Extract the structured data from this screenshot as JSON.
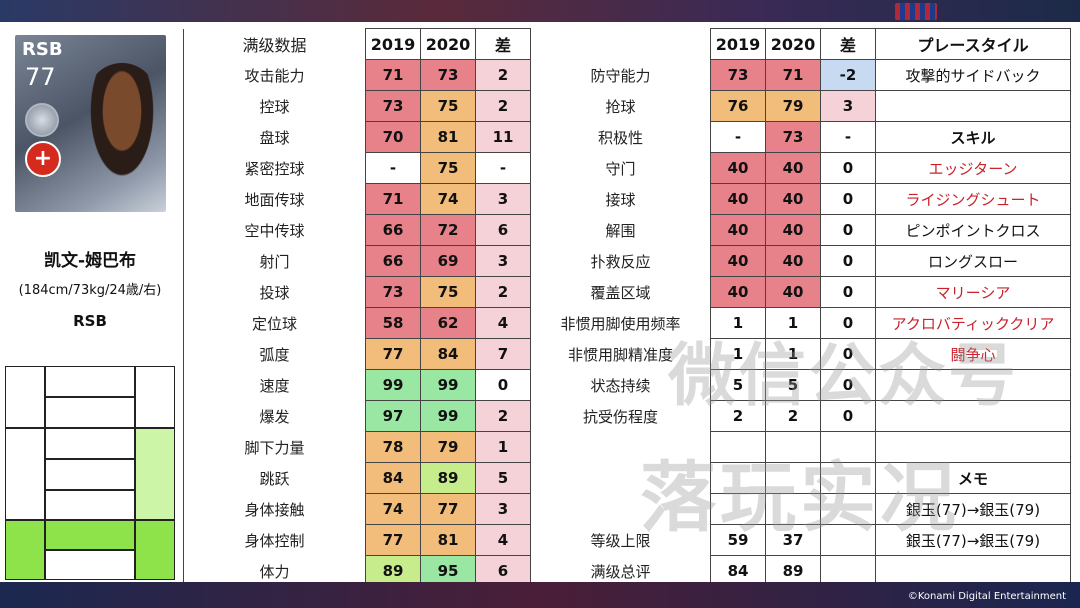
{
  "card": {
    "position": "RSB",
    "rating": "77"
  },
  "player": {
    "name": "凯文-姆巴布",
    "info": "(184cm/73kg/24歳/右)",
    "position": "RSB"
  },
  "headers": {
    "left_title": "满级数据",
    "y1": "2019",
    "y2": "2020",
    "diff": "差",
    "style_title": "プレースタイル"
  },
  "left_rows": [
    {
      "label": "攻击能力",
      "y1": "71",
      "y2": "73",
      "d": "2"
    },
    {
      "label": "控球",
      "y1": "73",
      "y2": "75",
      "d": "2"
    },
    {
      "label": "盘球",
      "y1": "70",
      "y2": "81",
      "d": "11"
    },
    {
      "label": "紧密控球",
      "y1": "-",
      "y2": "75",
      "d": "-"
    },
    {
      "label": "地面传球",
      "y1": "71",
      "y2": "74",
      "d": "3"
    },
    {
      "label": "空中传球",
      "y1": "66",
      "y2": "72",
      "d": "6"
    },
    {
      "label": "射门",
      "y1": "66",
      "y2": "69",
      "d": "3"
    },
    {
      "label": "投球",
      "y1": "73",
      "y2": "75",
      "d": "2"
    },
    {
      "label": "定位球",
      "y1": "58",
      "y2": "62",
      "d": "4"
    },
    {
      "label": "弧度",
      "y1": "77",
      "y2": "84",
      "d": "7"
    },
    {
      "label": "速度",
      "y1": "99",
      "y2": "99",
      "d": "0"
    },
    {
      "label": "爆发",
      "y1": "97",
      "y2": "99",
      "d": "2"
    },
    {
      "label": "脚下力量",
      "y1": "78",
      "y2": "79",
      "d": "1"
    },
    {
      "label": "跳跃",
      "y1": "84",
      "y2": "89",
      "d": "5"
    },
    {
      "label": "身体接触",
      "y1": "74",
      "y2": "77",
      "d": "3"
    },
    {
      "label": "身体控制",
      "y1": "77",
      "y2": "81",
      "d": "4"
    },
    {
      "label": "体力",
      "y1": "89",
      "y2": "95",
      "d": "6"
    }
  ],
  "right_rows": [
    {
      "label": "防守能力",
      "y1": "73",
      "y2": "71",
      "d": "-2"
    },
    {
      "label": "抢球",
      "y1": "76",
      "y2": "79",
      "d": "3"
    },
    {
      "label": "积极性",
      "y1": "-",
      "y2": "73",
      "d": "-"
    },
    {
      "label": "守门",
      "y1": "40",
      "y2": "40",
      "d": "0"
    },
    {
      "label": "接球",
      "y1": "40",
      "y2": "40",
      "d": "0"
    },
    {
      "label": "解围",
      "y1": "40",
      "y2": "40",
      "d": "0"
    },
    {
      "label": "扑救反应",
      "y1": "40",
      "y2": "40",
      "d": "0"
    },
    {
      "label": "覆盖区域",
      "y1": "40",
      "y2": "40",
      "d": "0"
    },
    {
      "label": "非惯用脚使用频率",
      "y1": "1",
      "y2": "1",
      "d": "0"
    },
    {
      "label": "非惯用脚精准度",
      "y1": "1",
      "y2": "1",
      "d": "0"
    },
    {
      "label": "状态持续",
      "y1": "5",
      "y2": "5",
      "d": "0"
    },
    {
      "label": "抗受伤程度",
      "y1": "2",
      "y2": "2",
      "d": "0"
    },
    {
      "label": "",
      "y1": "",
      "y2": "",
      "d": ""
    },
    {
      "label": "",
      "y1": "",
      "y2": "",
      "d": ""
    },
    {
      "label": "",
      "y1": "",
      "y2": "",
      "d": ""
    },
    {
      "label": "等级上限",
      "y1": "59",
      "y2": "37",
      "d": ""
    },
    {
      "label": "满级总评",
      "y1": "84",
      "y2": "89",
      "d": ""
    }
  ],
  "side_col": [
    {
      "text": "攻撃的サイドバック",
      "style": "normal"
    },
    {
      "text": "",
      "style": "normal"
    },
    {
      "text": "スキル",
      "style": "title"
    },
    {
      "text": "エッジターン",
      "style": "red"
    },
    {
      "text": "ライジングシュート",
      "style": "red"
    },
    {
      "text": "ピンポイントクロス",
      "style": "normal"
    },
    {
      "text": "ロングスロー",
      "style": "normal"
    },
    {
      "text": "マリーシア",
      "style": "red"
    },
    {
      "text": "アクロバティッククリア",
      "style": "red"
    },
    {
      "text": "闘争心",
      "style": "red"
    },
    {
      "text": "",
      "style": "normal"
    },
    {
      "text": "",
      "style": "normal"
    },
    {
      "text": "",
      "style": "normal"
    },
    {
      "text": "メモ",
      "style": "title"
    },
    {
      "text": "銀玉(77)→銀玉(79)",
      "style": "normal"
    },
    {
      "text": "",
      "style": "normal"
    }
  ],
  "watermark": {
    "line1": "微信公众号",
    "line2": "落玩实况"
  },
  "copyright": "©Konami Digital Entertainment",
  "colors": {
    "red": "#e8828a",
    "orange": "#f2bc7a",
    "green": "#9ae6a3",
    "yellowgreen": "#c6ec8c",
    "pink": "#f5d2d8",
    "blue": "#c7daf2",
    "red_text": "#c8232c"
  }
}
